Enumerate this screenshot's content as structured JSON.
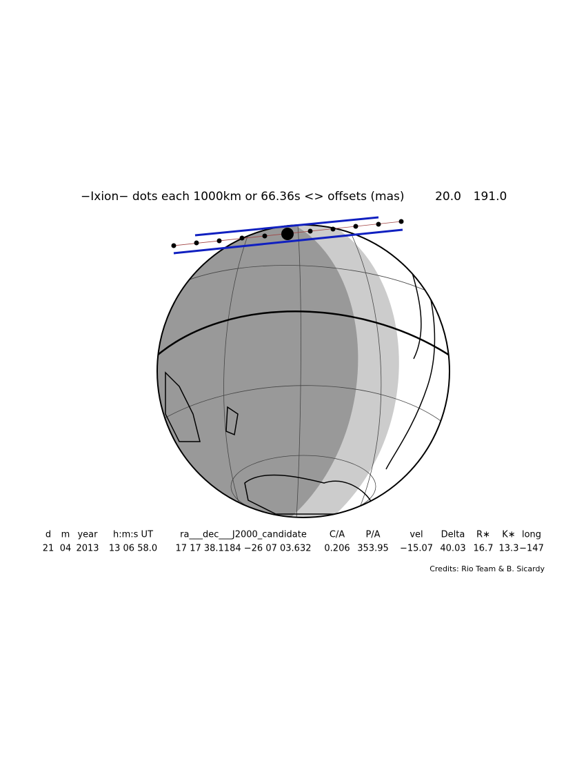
{
  "header": {
    "title": "−Ixion− dots each 1000km or 66.36s <> offsets (mas)",
    "offsets": [
      "20.0",
      "191.0"
    ]
  },
  "table": {
    "columns": [
      "d",
      "m",
      "year",
      "h:m:s UT",
      "ra___dec___J2000_candidate",
      "C/A",
      "P/A",
      "vel",
      "Delta",
      "R∗",
      "K∗",
      "long"
    ],
    "rows": [
      [
        "21",
        "04",
        "2013",
        "13 06 58.0",
        "17 17 38.1184 −26 07 03.632",
        "0.206",
        "353.95",
        "−15.07",
        "40.03",
        "16.7",
        "13.3",
        "−147"
      ]
    ]
  },
  "footer": {
    "credits": "Credits: Rio Team & B. Sicardy"
  }
}
